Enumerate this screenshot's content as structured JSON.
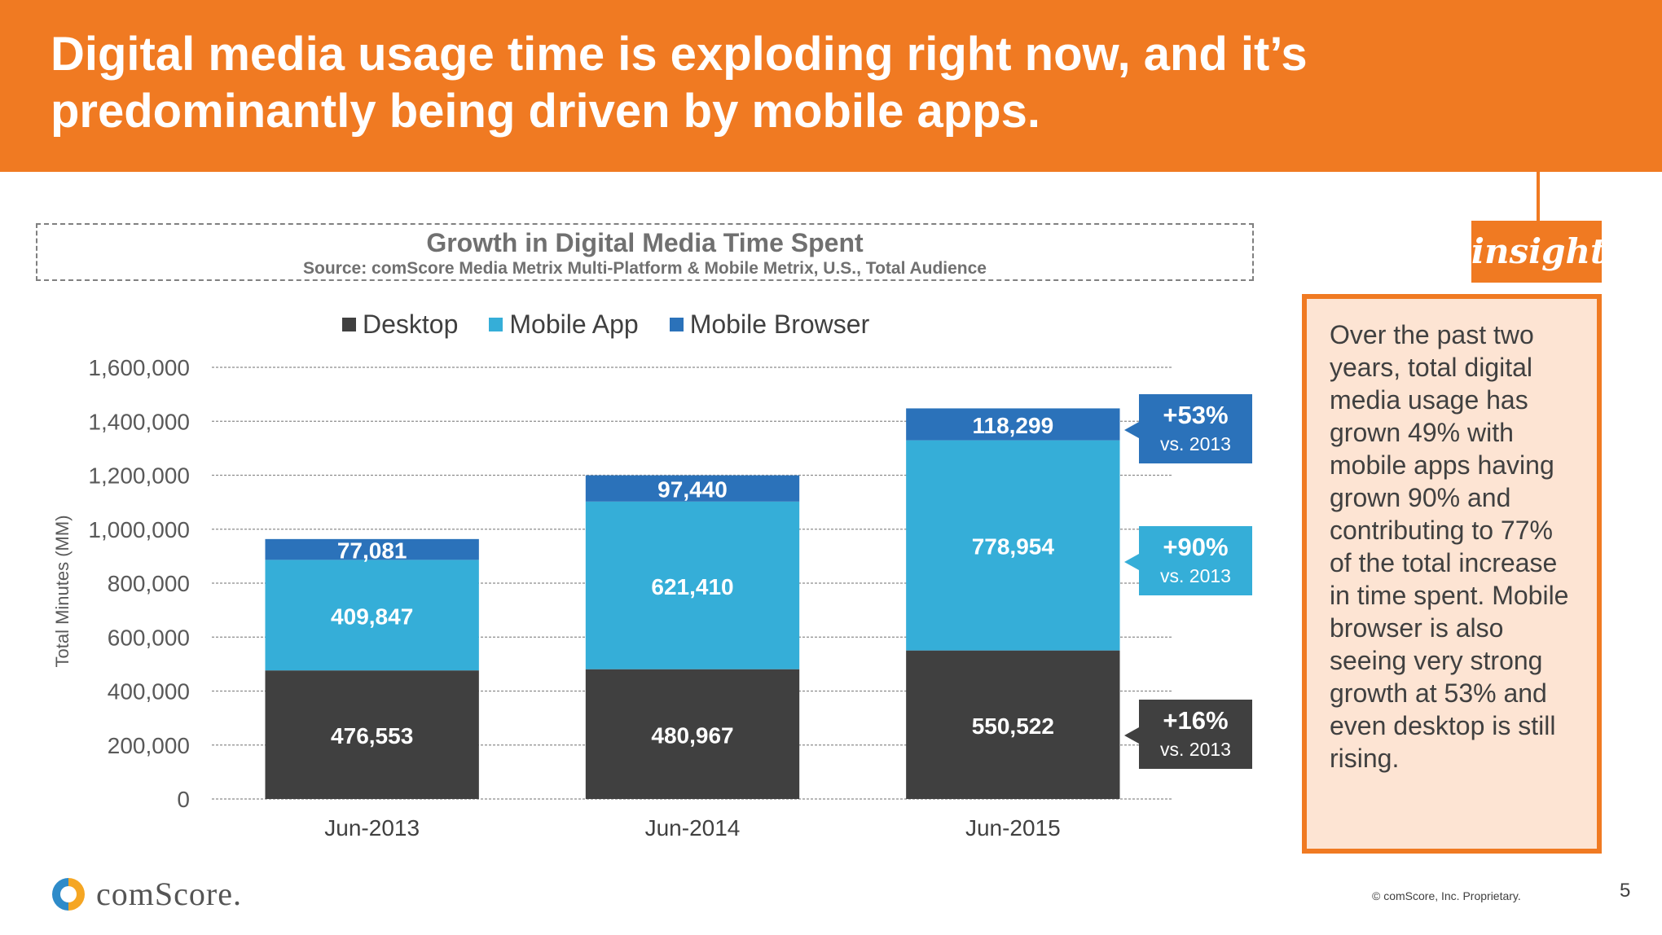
{
  "header": {
    "title_line1": "Digital media usage time is exploding right now, and it’s",
    "title_line2": "predominantly being driven by mobile apps."
  },
  "chart_data": {
    "type": "bar",
    "stacked": true,
    "title": "Growth in Digital Media Time Spent",
    "subtitle": "Source: comScore Media Metrix Multi-Platform & Mobile Metrix, U.S., Total Audience",
    "ylabel": "Total Minutes (MM)",
    "xlabel": "",
    "ylim": [
      0,
      1600000
    ],
    "yticks": [
      "0",
      "200,000",
      "400,000",
      "600,000",
      "800,000",
      "1,000,000",
      "1,200,000",
      "1,400,000",
      "1,600,000"
    ],
    "grid": true,
    "legend_position": "top",
    "categories": [
      "Jun-2013",
      "Jun-2014",
      "Jun-2015"
    ],
    "series": [
      {
        "name": "Desktop",
        "color": "#404040",
        "values": [
          476553,
          480967,
          550522
        ],
        "labels": [
          "476,553",
          "480,967",
          "550,522"
        ]
      },
      {
        "name": "Mobile App",
        "color": "#35AED8",
        "values": [
          409847,
          621410,
          778954
        ],
        "labels": [
          "409,847",
          "621,410",
          "778,954"
        ]
      },
      {
        "name": "Mobile Browser",
        "color": "#2B72BA",
        "values": [
          77081,
          97440,
          118299
        ],
        "labels": [
          "77,081",
          "97,440",
          "118,299"
        ]
      }
    ],
    "annotations": [
      {
        "series": "Mobile Browser",
        "pct": "+53%",
        "vs": "vs. 2013",
        "color": "#2B72BA"
      },
      {
        "series": "Mobile App",
        "pct": "+90%",
        "vs": "vs. 2013",
        "color": "#35AED8"
      },
      {
        "series": "Desktop",
        "pct": "+16%",
        "vs": "vs. 2013",
        "color": "#404040"
      }
    ]
  },
  "insight": {
    "tab_label": "insight",
    "text": "Over the past two years, total digital media usage has grown 49% with mobile apps having grown 90% and contributing to 77% of the total increase in time spent. Mobile browser is also seeing very strong growth at 53% and even desktop is still rising."
  },
  "footer": {
    "logo_text": "comScore.",
    "copyright": "© comScore, Inc. Proprietary.",
    "page_number": "5"
  }
}
